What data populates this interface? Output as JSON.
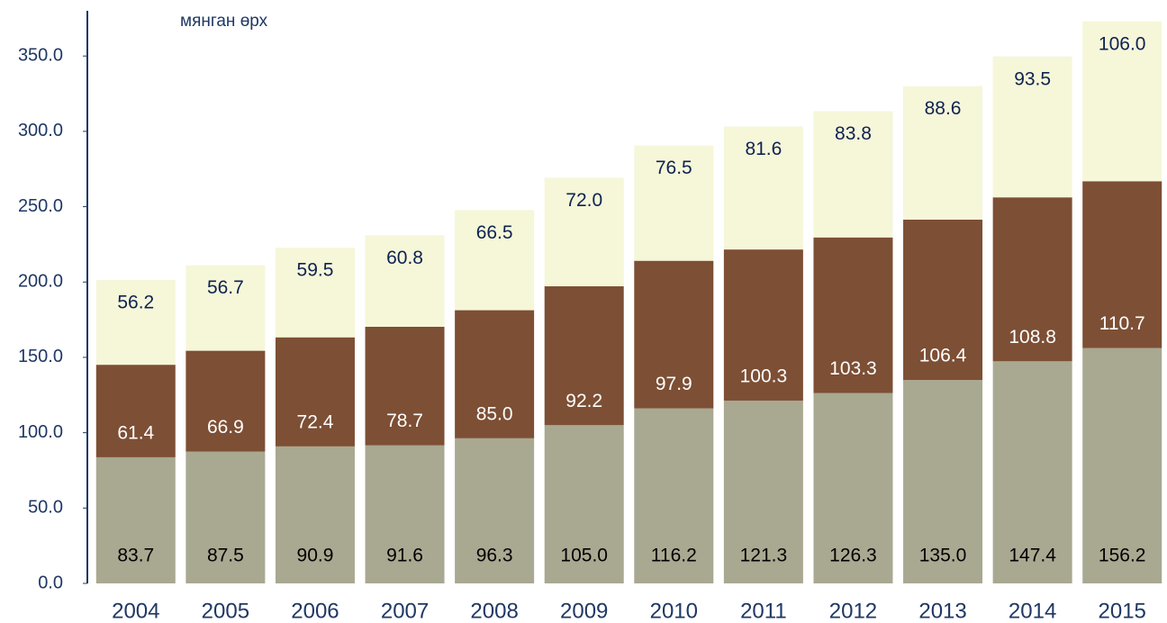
{
  "chart_data": {
    "type": "stacked_bar",
    "axis_label": "мянган өрх",
    "categories": [
      "2004",
      "2005",
      "2006",
      "2007",
      "2008",
      "2009",
      "2010",
      "2011",
      "2012",
      "2013",
      "2014",
      "2015"
    ],
    "series": [
      {
        "color": "#a9a891",
        "values": [
          83.7,
          87.5,
          90.9,
          91.6,
          96.3,
          105.0,
          116.2,
          121.3,
          126.3,
          135.0,
          147.4,
          156.2
        ],
        "value_labels": [
          "83.7",
          "87.5",
          "90.9",
          "91.6",
          "96.3",
          "105.0",
          "116.2",
          "121.3",
          "126.3",
          "135.0",
          "147.4",
          "156.2"
        ]
      },
      {
        "color": "#7d4f35",
        "values": [
          61.4,
          66.9,
          72.4,
          78.7,
          85.0,
          92.2,
          97.9,
          100.3,
          103.3,
          106.4,
          108.8,
          110.7
        ],
        "value_labels": [
          "61.4",
          "66.9",
          "72.4",
          "78.7",
          "85.0",
          "92.2",
          "97.9",
          "100.3",
          "103.3",
          "106.4",
          "108.8",
          "110.7"
        ]
      },
      {
        "color": "#f6f6d9",
        "values": [
          56.2,
          56.7,
          59.5,
          60.8,
          66.5,
          72.0,
          76.5,
          81.6,
          83.8,
          88.6,
          93.5,
          106.0
        ],
        "value_labels": [
          "56.2",
          "56.7",
          "59.5",
          "60.8",
          "66.5",
          "72.0",
          "76.5",
          "81.6",
          "83.8",
          "88.6",
          "93.5",
          "106.0"
        ]
      }
    ],
    "ylim": [
      0,
      380
    ],
    "yticks": [
      {
        "value": 0,
        "label": "0.0"
      },
      {
        "value": 50,
        "label": "50.0"
      },
      {
        "value": 100,
        "label": "100.0"
      },
      {
        "value": 150,
        "label": "150.0"
      },
      {
        "value": 200,
        "label": "200.0"
      },
      {
        "value": 250,
        "label": "250.0"
      },
      {
        "value": 300,
        "label": "300.0"
      },
      {
        "value": 350,
        "label": "350.0"
      }
    ]
  }
}
